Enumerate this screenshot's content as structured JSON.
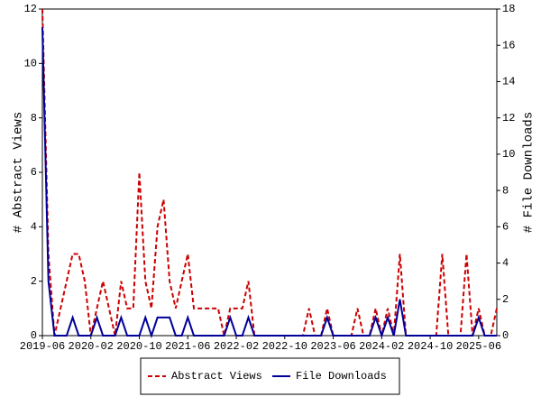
{
  "chart_data": {
    "type": "line",
    "x": [
      "2019-06",
      "2019-07",
      "2019-08",
      "2019-09",
      "2019-10",
      "2019-11",
      "2019-12",
      "2020-01",
      "2020-02",
      "2020-03",
      "2020-04",
      "2020-05",
      "2020-06",
      "2020-07",
      "2020-08",
      "2020-09",
      "2020-10",
      "2020-11",
      "2020-12",
      "2021-01",
      "2021-02",
      "2021-03",
      "2021-04",
      "2021-05",
      "2021-06",
      "2021-07",
      "2021-08",
      "2021-09",
      "2021-10",
      "2021-11",
      "2021-12",
      "2022-01",
      "2022-02",
      "2022-03",
      "2022-04",
      "2022-05",
      "2022-06",
      "2022-07",
      "2022-08",
      "2022-09",
      "2022-10",
      "2022-11",
      "2022-12",
      "2023-01",
      "2023-02",
      "2023-03",
      "2023-04",
      "2023-05",
      "2023-06",
      "2023-07",
      "2023-08",
      "2023-09",
      "2023-10",
      "2023-11",
      "2023-12",
      "2024-01",
      "2024-02",
      "2024-03",
      "2024-04",
      "2024-05",
      "2024-06",
      "2024-07",
      "2024-08",
      "2024-09",
      "2024-10",
      "2024-11",
      "2024-12",
      "2025-01",
      "2025-02",
      "2025-03",
      "2025-04",
      "2025-05",
      "2025-06",
      "2025-07",
      "2025-08",
      "2025-09"
    ],
    "xticks": [
      "2019-06",
      "2020-02",
      "2020-10",
      "2021-06",
      "2022-02",
      "2022-10",
      "2023-06",
      "2024-02",
      "2024-10",
      "2025-06"
    ],
    "ylabel": "# Abstract Views",
    "y2label": "# File Downloads",
    "ylim": [
      0,
      12
    ],
    "yticks": [
      0,
      2,
      4,
      6,
      8,
      10,
      12
    ],
    "y2lim": [
      0,
      18
    ],
    "y2ticks": [
      0,
      2,
      4,
      6,
      8,
      10,
      12,
      14,
      16,
      18
    ],
    "legend": "bottom",
    "series": [
      {
        "name": "Abstract Views",
        "color": "#cc0000",
        "dashed": true,
        "values": [
          12,
          3,
          0,
          1,
          2,
          3,
          3,
          2,
          0,
          1,
          2,
          1,
          0,
          2,
          1,
          1,
          6,
          2,
          1,
          4,
          5,
          2,
          1,
          2,
          3,
          1,
          1,
          1,
          1,
          1,
          0,
          1,
          1,
          1,
          2,
          0,
          0,
          0,
          0,
          0,
          0,
          0,
          0,
          0,
          1,
          0,
          0,
          1,
          0,
          0,
          0,
          0,
          1,
          0,
          0,
          1,
          0,
          1,
          0,
          3,
          0,
          0,
          0,
          0,
          0,
          0,
          3,
          0,
          0,
          0,
          3,
          0,
          1,
          0,
          0,
          1
        ]
      },
      {
        "name": "File Downloads",
        "color": "#000099",
        "axis": "y2",
        "values": [
          17,
          3,
          0,
          0,
          0,
          1,
          0,
          0,
          0,
          1,
          0,
          0,
          0,
          1,
          0,
          0,
          0,
          1,
          0,
          1,
          1,
          1,
          0,
          0,
          1,
          0,
          0,
          0,
          0,
          0,
          0,
          1,
          0,
          0,
          1,
          0,
          0,
          0,
          0,
          0,
          0,
          0,
          0,
          0,
          0,
          0,
          0,
          1,
          0,
          0,
          0,
          0,
          0,
          0,
          0,
          1,
          0,
          1,
          0,
          2,
          0,
          0,
          0,
          0,
          0,
          0,
          0,
          0,
          0,
          0,
          0,
          0,
          1,
          0,
          0,
          0
        ]
      }
    ]
  }
}
